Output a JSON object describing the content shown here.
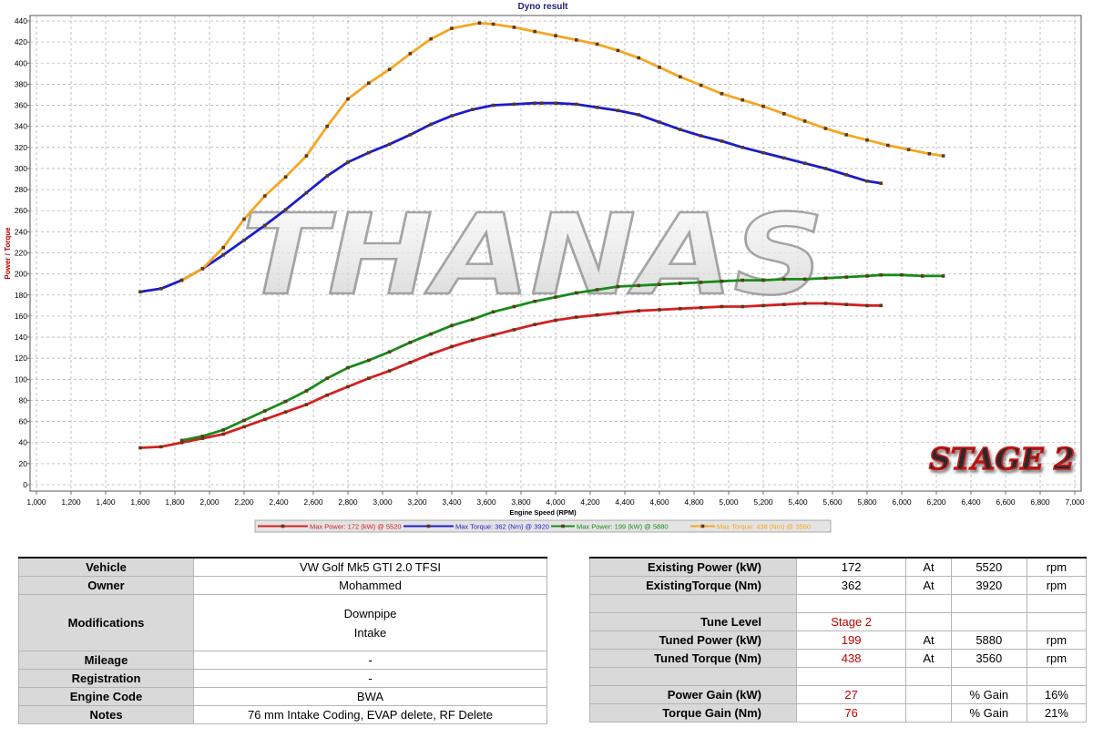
{
  "chart_data": {
    "type": "line",
    "title": "Dyno result",
    "xlabel": "Engine Speed (RPM)",
    "ylabel": "Power / Torque",
    "xlim": [
      1000,
      7000
    ],
    "ylim": [
      0,
      440
    ],
    "x_ticks": [
      "1,000",
      "1,200",
      "1,400",
      "1,600",
      "1,800",
      "2,000",
      "2,200",
      "2,400",
      "2,600",
      "2,800",
      "3,000",
      "3,200",
      "3,400",
      "3,600",
      "3,800",
      "4,000",
      "4,200",
      "4,400",
      "4,600",
      "4,800",
      "5,000",
      "5,200",
      "5,400",
      "5,600",
      "5,800",
      "6,000",
      "6,200",
      "6,400",
      "6,600",
      "6,800",
      "7,000"
    ],
    "y_ticks": [
      "0",
      "20",
      "40",
      "60",
      "80",
      "100",
      "120",
      "140",
      "160",
      "180",
      "200",
      "220",
      "240",
      "260",
      "280",
      "300",
      "320",
      "340",
      "360",
      "380",
      "400",
      "420",
      "440"
    ],
    "grid": true,
    "legend_position": "bottom",
    "watermark": "THANAS",
    "badge": "STAGE 2",
    "series": [
      {
        "name": "Max Power: 172 (kW) @ 5520",
        "color": "#d42020",
        "x": [
          1600,
          1720,
          1840,
          1960,
          2080,
          2200,
          2320,
          2440,
          2560,
          2680,
          2800,
          2920,
          3040,
          3160,
          3280,
          3400,
          3520,
          3640,
          3760,
          3880,
          4000,
          4120,
          4240,
          4360,
          4480,
          4600,
          4720,
          4840,
          4960,
          5080,
          5200,
          5320,
          5440,
          5560,
          5680,
          5800,
          5880
        ],
        "y": [
          35,
          36,
          40,
          44,
          48,
          55,
          62,
          69,
          76,
          85,
          93,
          101,
          108,
          116,
          124,
          131,
          137,
          142,
          147,
          152,
          156,
          159,
          161,
          163,
          165,
          166,
          167,
          168,
          169,
          169,
          170,
          171,
          172,
          172,
          171,
          170,
          170
        ]
      },
      {
        "name": "Max Torque: 362 (Nm) @ 3920",
        "color": "#1c1cc8",
        "x": [
          1600,
          1720,
          1840,
          1960,
          2080,
          2200,
          2320,
          2440,
          2560,
          2680,
          2800,
          2920,
          3040,
          3160,
          3280,
          3400,
          3520,
          3640,
          3760,
          3880,
          3920,
          4000,
          4120,
          4240,
          4360,
          4480,
          4600,
          4720,
          4840,
          4960,
          5080,
          5200,
          5320,
          5440,
          5560,
          5680,
          5800,
          5880
        ],
        "y": [
          183,
          186,
          194,
          205,
          218,
          232,
          246,
          261,
          277,
          293,
          306,
          315,
          323,
          332,
          342,
          350,
          356,
          360,
          361,
          362,
          362,
          362,
          361,
          358,
          355,
          351,
          344,
          337,
          331,
          326,
          320,
          315,
          310,
          305,
          300,
          294,
          288,
          286
        ]
      },
      {
        "name": "Max Power: 199 (kW) @ 5880",
        "color": "#1a8a1a",
        "x": [
          1840,
          1960,
          2080,
          2200,
          2320,
          2440,
          2560,
          2680,
          2800,
          2920,
          3040,
          3160,
          3280,
          3400,
          3520,
          3640,
          3760,
          3880,
          4000,
          4120,
          4240,
          4360,
          4480,
          4600,
          4720,
          4840,
          4960,
          5080,
          5200,
          5320,
          5440,
          5560,
          5680,
          5800,
          5880,
          6000,
          6120,
          6240
        ],
        "y": [
          42,
          46,
          52,
          61,
          70,
          79,
          89,
          101,
          111,
          118,
          126,
          135,
          143,
          151,
          157,
          164,
          169,
          174,
          178,
          182,
          185,
          188,
          189,
          190,
          191,
          192,
          193,
          194,
          194,
          195,
          195,
          196,
          197,
          198,
          199,
          199,
          198,
          198
        ]
      },
      {
        "name": "Max Torque: 438 (Nm) @ 3560",
        "color": "#f5a623",
        "x": [
          1840,
          1960,
          2080,
          2200,
          2320,
          2440,
          2560,
          2680,
          2800,
          2920,
          3040,
          3160,
          3280,
          3400,
          3560,
          3640,
          3760,
          3880,
          4000,
          4120,
          4240,
          4360,
          4480,
          4600,
          4720,
          4840,
          4960,
          5080,
          5200,
          5320,
          5440,
          5560,
          5680,
          5800,
          5920,
          6040,
          6160,
          6240
        ],
        "y": [
          194,
          205,
          225,
          252,
          274,
          292,
          312,
          340,
          366,
          381,
          394,
          409,
          423,
          433,
          438,
          437,
          434,
          430,
          426,
          422,
          418,
          412,
          405,
          396,
          387,
          379,
          371,
          365,
          359,
          352,
          345,
          338,
          332,
          327,
          322,
          318,
          314,
          312
        ]
      }
    ]
  },
  "vehicle_table": {
    "rows": [
      {
        "label": "Vehicle",
        "value": "VW Golf Mk5 GTI 2.0 TFSI"
      },
      {
        "label": "Owner",
        "value": "Mohammed"
      },
      {
        "label": "Modifications",
        "values": [
          "Downpipe",
          "Intake"
        ]
      },
      {
        "label": "Mileage",
        "value": "-"
      },
      {
        "label": "Registration",
        "value": "-"
      },
      {
        "label": "Engine Code",
        "value": "BWA"
      },
      {
        "label": "Notes",
        "value": "76 mm Intake Coding, EVAP delete, RF Delete"
      }
    ]
  },
  "results_table": {
    "existing_power": {
      "label": "Existing Power (kW)",
      "value": "172",
      "at": "At",
      "rpm": "5520",
      "unit": "rpm"
    },
    "existing_torque": {
      "label": "ExistingTorque (Nm)",
      "value": "362",
      "at": "At",
      "rpm": "3920",
      "unit": "rpm"
    },
    "tune_level": {
      "label": "Tune Level",
      "value": "Stage 2"
    },
    "tuned_power": {
      "label": "Tuned Power (kW)",
      "value": "199",
      "at": "At",
      "rpm": "5880",
      "unit": "rpm"
    },
    "tuned_torque": {
      "label": "Tuned Torque (Nm)",
      "value": "438",
      "at": "At",
      "rpm": "3560",
      "unit": "rpm"
    },
    "power_gain": {
      "label": "Power Gain (kW)",
      "value": "27",
      "pct_label": "% Gain",
      "pct": "16%"
    },
    "torque_gain": {
      "label": "Torque Gain (Nm)",
      "value": "76",
      "pct_label": "% Gain",
      "pct": "21%"
    }
  }
}
